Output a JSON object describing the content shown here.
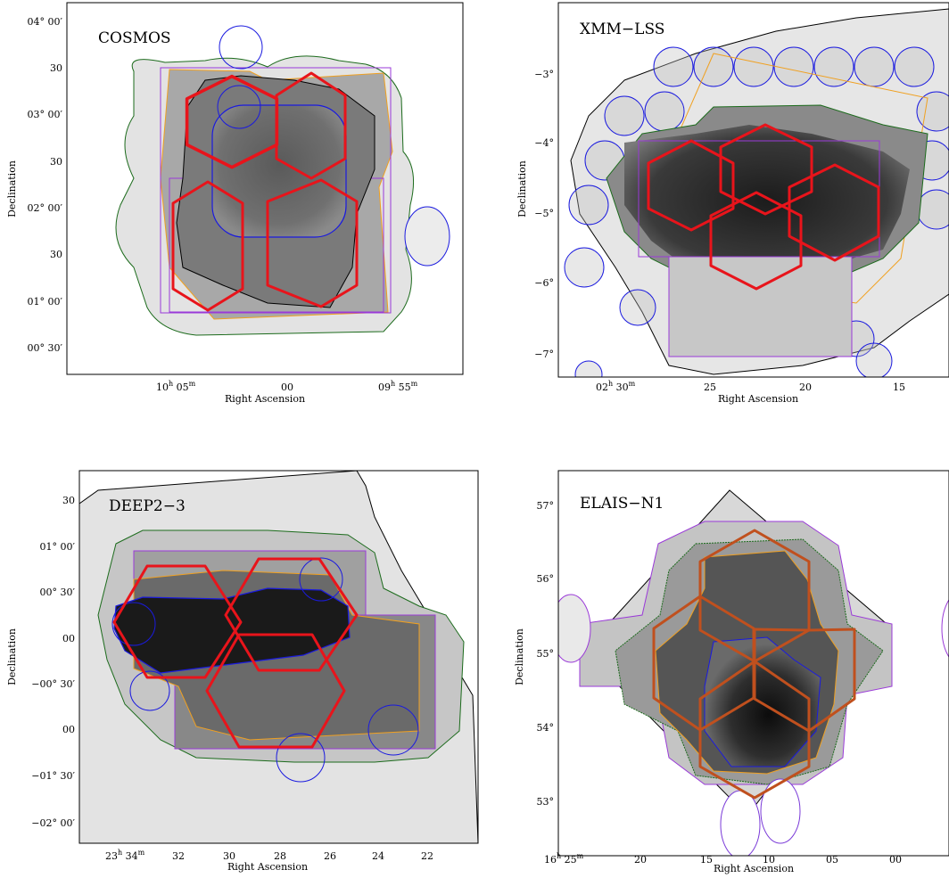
{
  "panels": [
    {
      "id": "cosmos",
      "title": "COSMOS",
      "xlabel": "Right Ascension",
      "ylabel": "Declination",
      "yticks": [
        "04° 00′",
        "30",
        "03° 00′",
        "30",
        "02° 00′",
        "30",
        "01° 00′",
        "00° 30′"
      ],
      "xticks": [
        {
          "main": "10",
          "sup": "h",
          "rest": " 05",
          "sup2": "m"
        },
        {
          "main": "00",
          "sup": "",
          "rest": "",
          "sup2": ""
        },
        {
          "main": "09",
          "sup": "h",
          "rest": " 55",
          "sup2": "m"
        }
      ]
    },
    {
      "id": "xmm-lss",
      "title": "XMM−LSS",
      "xlabel": "Right Ascension",
      "ylabel": "Declination",
      "yticks": [
        "−3°",
        "−4°",
        "−5°",
        "−6°",
        "−7°"
      ],
      "xticks": [
        {
          "main": "02",
          "sup": "h",
          "rest": " 30",
          "sup2": "m"
        },
        {
          "main": "25",
          "sup": "",
          "rest": "",
          "sup2": ""
        },
        {
          "main": "20",
          "sup": "",
          "rest": "",
          "sup2": ""
        },
        {
          "main": "15",
          "sup": "",
          "rest": "",
          "sup2": ""
        }
      ]
    },
    {
      "id": "deep2-3",
      "title": "DEEP2−3",
      "xlabel": "Right Ascension",
      "ylabel": "Declination",
      "yticks": [
        "30",
        "01° 00′",
        "00° 30′",
        "00",
        "−00° 30′",
        "00",
        "−01° 30′",
        "−02° 00′"
      ],
      "xticks": [
        {
          "main": "23",
          "sup": "h",
          "rest": " 34",
          "sup2": "m"
        },
        {
          "main": "32",
          "sup": "",
          "rest": "",
          "sup2": ""
        },
        {
          "main": "30",
          "sup": "",
          "rest": "",
          "sup2": ""
        },
        {
          "main": "28",
          "sup": "",
          "rest": "",
          "sup2": ""
        },
        {
          "main": "26",
          "sup": "",
          "rest": "",
          "sup2": ""
        },
        {
          "main": "24",
          "sup": "",
          "rest": "",
          "sup2": ""
        },
        {
          "main": "22",
          "sup": "",
          "rest": "",
          "sup2": ""
        }
      ]
    },
    {
      "id": "elais-n1",
      "title": "ELAIS−N1",
      "xlabel": "Right Ascension",
      "ylabel": "Declination",
      "yticks": [
        "57°",
        "56°",
        "55°",
        "54°",
        "53°"
      ],
      "xticks": [
        {
          "main": "16",
          "sup": "h",
          "rest": " 25",
          "sup2": "m"
        },
        {
          "main": "20",
          "sup": "",
          "rest": "",
          "sup2": ""
        },
        {
          "main": "15",
          "sup": "",
          "rest": "",
          "sup2": ""
        },
        {
          "main": "10",
          "sup": "",
          "rest": "",
          "sup2": ""
        },
        {
          "main": "05",
          "sup": "",
          "rest": "",
          "sup2": ""
        },
        {
          "main": "00",
          "sup": "",
          "rest": "",
          "sup2": ""
        }
      ]
    }
  ],
  "colors": {
    "hexagon": "#e8141b",
    "hexagon_elais": "#c0501e",
    "circle": "#1a1adf",
    "green_contour": "#1c6b1c",
    "orange_contour": "#f0a020",
    "purple_box": "#9a3ad8",
    "black_contour": "#000000",
    "light_fill": "#e3e3e3"
  }
}
